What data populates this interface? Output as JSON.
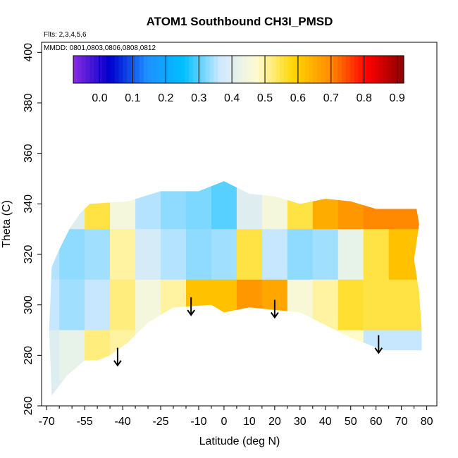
{
  "chart_data": {
    "type": "heatmap",
    "title": "ATOM1 Southbound CH3I_PMSD",
    "flights_label": "Flts: 2,3,4,5,6",
    "dates_label": "MMDD: 0801,0803,0806,0808,0812",
    "xlabel": "Latitude (deg N)",
    "ylabel": "Theta (C)",
    "xlim": [
      -72,
      84
    ],
    "ylim": [
      260,
      404
    ],
    "x_ticks": [
      -70,
      -55,
      -40,
      -25,
      -10,
      0,
      10,
      20,
      30,
      40,
      50,
      60,
      70,
      80
    ],
    "x_tick_labels": [
      "-70",
      "-55",
      "-40",
      "-25",
      "-10",
      "0",
      "10",
      "20",
      "30",
      "40",
      "50",
      "60",
      "70",
      "80"
    ],
    "x_minor_ticks": [
      -65,
      -60,
      -50,
      -45,
      -35,
      -30,
      -20,
      -15,
      -5,
      5,
      15,
      25,
      35,
      45,
      55,
      65,
      75
    ],
    "y_ticks": [
      260,
      280,
      300,
      320,
      340,
      360,
      380,
      400
    ],
    "y_tick_labels": [
      "260",
      "280",
      "300",
      "320",
      "340",
      "360",
      "380",
      "400"
    ],
    "colorbar": {
      "range": [
        -0.08,
        0.92
      ],
      "ticks": [
        0.0,
        0.1,
        0.2,
        0.3,
        0.4,
        0.5,
        0.6,
        0.7,
        0.8,
        0.9
      ],
      "tick_labels": [
        "0.0",
        "0.1",
        "0.2",
        "0.3",
        "0.4",
        "0.5",
        "0.6",
        "0.7",
        "0.8",
        "0.9"
      ],
      "colors": [
        "#8a2be2",
        "#0000cd",
        "#1e90ff",
        "#00bfff",
        "#cfe8ff",
        "#fffbd0",
        "#ffd700",
        "#ff8c00",
        "#ff0000",
        "#8b0000"
      ]
    },
    "region_boundary": [
      [
        -68,
        264
      ],
      [
        -69,
        290
      ],
      [
        -68,
        315
      ],
      [
        -65,
        322
      ],
      [
        -61,
        330
      ],
      [
        -57,
        336
      ],
      [
        -53,
        340
      ],
      [
        -38,
        341
      ],
      [
        -25,
        345
      ],
      [
        -10,
        345
      ],
      [
        0,
        349
      ],
      [
        10,
        344
      ],
      [
        20,
        343
      ],
      [
        30,
        340
      ],
      [
        40,
        342
      ],
      [
        50,
        341
      ],
      [
        60,
        338
      ],
      [
        70,
        338
      ],
      [
        76,
        338
      ],
      [
        77,
        332
      ],
      [
        75,
        318
      ],
      [
        77,
        305
      ],
      [
        78,
        290
      ],
      [
        78,
        282
      ],
      [
        63,
        282
      ],
      [
        50,
        287
      ],
      [
        40,
        292
      ],
      [
        30,
        297
      ],
      [
        20,
        298
      ],
      [
        10,
        299
      ],
      [
        0,
        297
      ],
      [
        -5,
        300
      ],
      [
        -20,
        299
      ],
      [
        -30,
        293
      ],
      [
        -38,
        285
      ],
      [
        -45,
        280
      ],
      [
        -50,
        278
      ],
      [
        -55,
        278
      ],
      [
        -62,
        272
      ]
    ],
    "sample_grid": {
      "latitudes": [
        -70,
        -60,
        -50,
        -40,
        -30,
        -20,
        -10,
        0,
        10,
        20,
        30,
        40,
        50,
        60,
        70,
        80
      ],
      "thetas": [
        400,
        380,
        360,
        340,
        320,
        300,
        280,
        260
      ],
      "values": [
        [
          0.4,
          0.4,
          0.4,
          0.4,
          0.4,
          0.4,
          0.4,
          0.4,
          0.4,
          0.4,
          0.4,
          0.4,
          0.4,
          0.4,
          0.4,
          0.4
        ],
        [
          0.4,
          0.4,
          0.4,
          0.4,
          0.4,
          0.4,
          0.4,
          0.4,
          0.4,
          0.4,
          0.4,
          0.4,
          0.4,
          0.4,
          0.4,
          0.4
        ],
        [
          0.4,
          0.4,
          0.4,
          0.4,
          0.4,
          0.4,
          0.4,
          0.4,
          0.4,
          0.4,
          0.4,
          0.4,
          0.4,
          0.4,
          0.4,
          0.4
        ],
        [
          0.35,
          0.4,
          0.55,
          0.45,
          0.35,
          0.33,
          0.32,
          0.3,
          0.4,
          0.45,
          0.55,
          0.65,
          0.68,
          0.7,
          0.7,
          0.7
        ],
        [
          0.35,
          0.33,
          0.34,
          0.5,
          0.38,
          0.35,
          0.33,
          0.34,
          0.55,
          0.36,
          0.33,
          0.34,
          0.42,
          0.55,
          0.62,
          0.62
        ],
        [
          0.36,
          0.34,
          0.36,
          0.52,
          0.45,
          0.5,
          0.62,
          0.62,
          0.68,
          0.66,
          0.46,
          0.5,
          0.56,
          0.55,
          0.55,
          0.55
        ],
        [
          0.4,
          0.42,
          0.52,
          0.5,
          0.45,
          0.4,
          0.4,
          0.4,
          0.4,
          0.4,
          0.4,
          0.4,
          0.48,
          0.36,
          0.36,
          0.36
        ],
        [
          0.4,
          0.4,
          0.4,
          0.4,
          0.4,
          0.4,
          0.4,
          0.4,
          0.4,
          0.4,
          0.4,
          0.4,
          0.4,
          0.4,
          0.4,
          0.4
        ]
      ]
    },
    "arrows": [
      {
        "lat": -42,
        "theta_top": 283,
        "theta_bottom": 276
      },
      {
        "lat": -13,
        "theta_top": 303,
        "theta_bottom": 296
      },
      {
        "lat": 20,
        "theta_top": 302,
        "theta_bottom": 295
      },
      {
        "lat": 61,
        "theta_top": 288,
        "theta_bottom": 281
      }
    ]
  }
}
